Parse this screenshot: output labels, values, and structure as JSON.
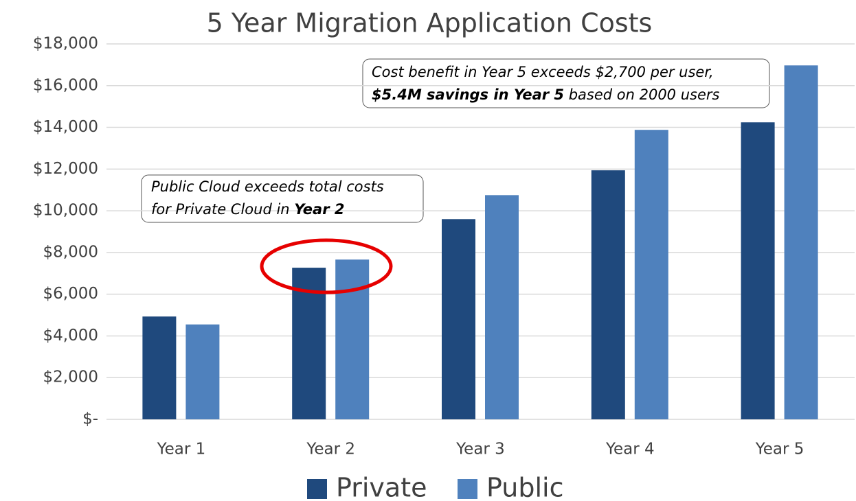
{
  "chart_data": {
    "type": "bar",
    "title": "5 Year Migration Application Costs",
    "categories": [
      "Year 1",
      "Year 2",
      "Year 3",
      "Year 4",
      "Year 5"
    ],
    "series": [
      {
        "name": "Private",
        "color": "#1f497d",
        "values": [
          4930,
          7270,
          9600,
          11940,
          14240
        ]
      },
      {
        "name": "Public",
        "color": "#4f81bd",
        "values": [
          4550,
          7660,
          10750,
          13880,
          16970
        ]
      }
    ],
    "ylim": [
      0,
      18000
    ],
    "yticks": [
      {
        "value": 0,
        "label": "$-"
      },
      {
        "value": 2000,
        "label": "$2,000"
      },
      {
        "value": 4000,
        "label": "$4,000"
      },
      {
        "value": 6000,
        "label": "$6,000"
      },
      {
        "value": 8000,
        "label": "$8,000"
      },
      {
        "value": 10000,
        "label": "$10,000"
      },
      {
        "value": 12000,
        "label": "$12,000"
      },
      {
        "value": 14000,
        "label": "$14,000"
      },
      {
        "value": 16000,
        "label": "$16,000"
      },
      {
        "value": 18000,
        "label": "$18,000"
      }
    ],
    "grid": true,
    "legend": "bottom",
    "annotations": [
      {
        "lines": [
          [
            {
              "text": "Cost benefit in Year 5 exceeds $2,700 per user,"
            }
          ],
          [
            {
              "text": "$5.4M savings in Year 5",
              "bold": true
            },
            {
              "text": " based on 2000 users"
            }
          ]
        ]
      },
      {
        "lines": [
          [
            {
              "text": "Public Cloud exceeds total costs"
            }
          ],
          [
            {
              "text": "for Private Cloud in "
            },
            {
              "text": "Year 2",
              "bold": true
            }
          ]
        ]
      }
    ]
  }
}
